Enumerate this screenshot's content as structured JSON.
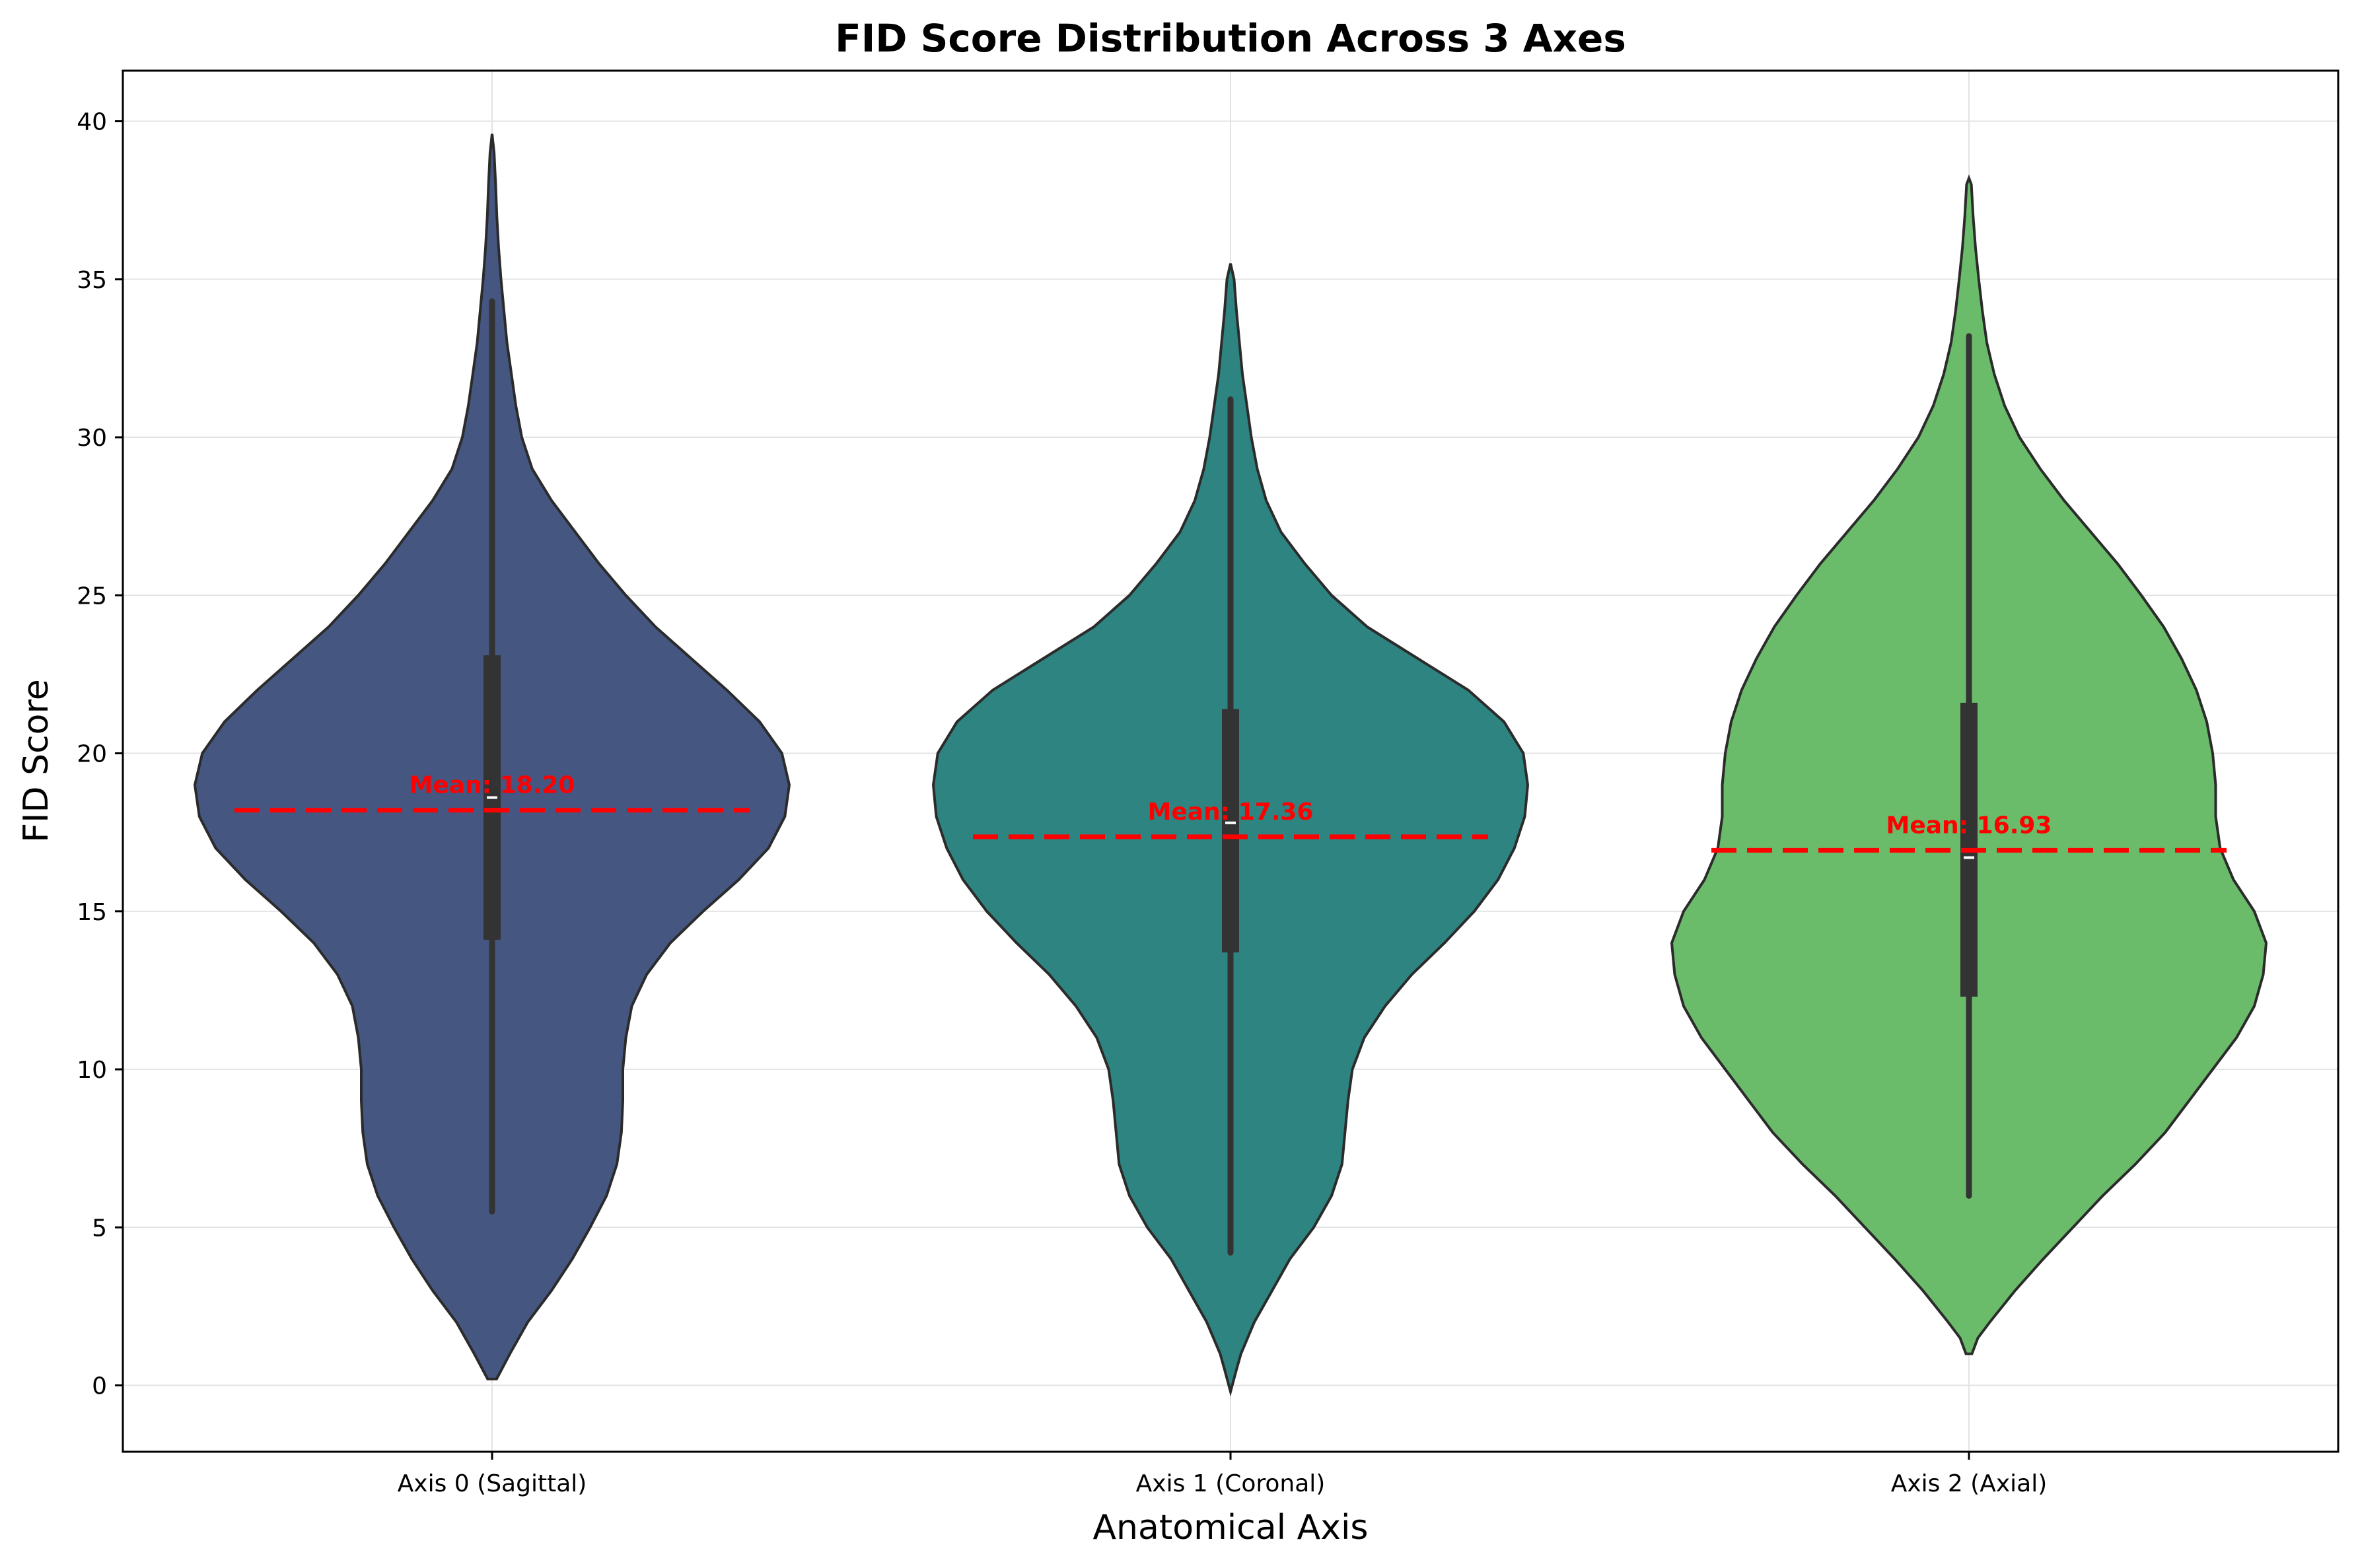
{
  "chart_data": {
    "type": "violin",
    "title": "FID Score Distribution Across 3 Axes",
    "xlabel": "Anatomical Axis",
    "ylabel": "FID Score",
    "ylim": [
      -2.1,
      41.6
    ],
    "yticks": [
      0,
      5,
      10,
      15,
      20,
      25,
      30,
      35,
      40
    ],
    "grid": true,
    "colors": [
      "#455681",
      "#2e8480",
      "#6abc6a"
    ],
    "categories": [
      "Axis 0 (Sagittal)",
      "Axis 1 (Coronal)",
      "Axis 2 (Axial)"
    ],
    "series": [
      {
        "category": "Axis 0 (Sagittal)",
        "mean": 18.2,
        "mean_label": "Mean: 18.20",
        "median": 18.6,
        "q1": 14.1,
        "q3": 23.1,
        "whisker_low": 5.5,
        "whisker_high": 34.3,
        "density": [
          [
            0.2,
            0.015
          ],
          [
            1,
            0.06
          ],
          [
            2,
            0.12
          ],
          [
            3,
            0.2
          ],
          [
            4,
            0.27
          ],
          [
            5,
            0.33
          ],
          [
            6,
            0.385
          ],
          [
            7,
            0.42
          ],
          [
            8,
            0.435
          ],
          [
            9,
            0.44
          ],
          [
            10,
            0.44
          ],
          [
            11,
            0.45
          ],
          [
            12,
            0.47
          ],
          [
            13,
            0.52
          ],
          [
            14,
            0.6
          ],
          [
            15,
            0.71
          ],
          [
            16,
            0.83
          ],
          [
            17,
            0.93
          ],
          [
            18,
            0.985
          ],
          [
            19,
            1.0
          ],
          [
            20,
            0.975
          ],
          [
            21,
            0.9
          ],
          [
            22,
            0.79
          ],
          [
            23,
            0.67
          ],
          [
            24,
            0.55
          ],
          [
            25,
            0.45
          ],
          [
            26,
            0.36
          ],
          [
            27,
            0.28
          ],
          [
            28,
            0.2
          ],
          [
            29,
            0.135
          ],
          [
            30,
            0.1
          ],
          [
            31,
            0.08
          ],
          [
            32,
            0.065
          ],
          [
            33,
            0.05
          ],
          [
            34,
            0.04
          ],
          [
            35,
            0.03
          ],
          [
            36,
            0.022
          ],
          [
            37,
            0.016
          ],
          [
            38,
            0.012
          ],
          [
            39,
            0.007
          ],
          [
            39.6,
            0.0
          ]
        ]
      },
      {
        "category": "Axis 1 (Coronal)",
        "mean": 17.36,
        "mean_label": "Mean: 17.36",
        "median": 17.8,
        "q1": 13.7,
        "q3": 21.4,
        "whisker_low": 4.2,
        "whisker_high": 31.2,
        "density": [
          [
            -0.2,
            0.0
          ],
          [
            0.5,
            0.02
          ],
          [
            1,
            0.035
          ],
          [
            2,
            0.08
          ],
          [
            3,
            0.14
          ],
          [
            4,
            0.2
          ],
          [
            5,
            0.28
          ],
          [
            6,
            0.34
          ],
          [
            7,
            0.375
          ],
          [
            8,
            0.385
          ],
          [
            9,
            0.395
          ],
          [
            10,
            0.41
          ],
          [
            11,
            0.45
          ],
          [
            12,
            0.52
          ],
          [
            13,
            0.61
          ],
          [
            14,
            0.72
          ],
          [
            15,
            0.82
          ],
          [
            16,
            0.9
          ],
          [
            17,
            0.955
          ],
          [
            18,
            0.99
          ],
          [
            19,
            1.0
          ],
          [
            20,
            0.985
          ],
          [
            21,
            0.92
          ],
          [
            22,
            0.8
          ],
          [
            23,
            0.63
          ],
          [
            24,
            0.46
          ],
          [
            25,
            0.34
          ],
          [
            26,
            0.25
          ],
          [
            27,
            0.17
          ],
          [
            28,
            0.12
          ],
          [
            29,
            0.09
          ],
          [
            30,
            0.07
          ],
          [
            31,
            0.055
          ],
          [
            32,
            0.04
          ],
          [
            33,
            0.03
          ],
          [
            34,
            0.02
          ],
          [
            35,
            0.012
          ],
          [
            35.5,
            0.0
          ]
        ]
      },
      {
        "category": "Axis 2 (Axial)",
        "mean": 16.93,
        "mean_label": "Mean: 16.93",
        "median": 16.7,
        "q1": 12.3,
        "q3": 21.6,
        "whisker_low": 6.0,
        "whisker_high": 33.2,
        "density": [
          [
            1,
            0.01
          ],
          [
            1.5,
            0.03
          ],
          [
            2,
            0.07
          ],
          [
            3,
            0.155
          ],
          [
            4,
            0.25
          ],
          [
            5,
            0.35
          ],
          [
            6,
            0.45
          ],
          [
            7,
            0.56
          ],
          [
            8,
            0.66
          ],
          [
            9,
            0.74
          ],
          [
            10,
            0.82
          ],
          [
            11,
            0.9
          ],
          [
            12,
            0.96
          ],
          [
            13,
            0.99
          ],
          [
            14,
            1.0
          ],
          [
            15,
            0.96
          ],
          [
            16,
            0.89
          ],
          [
            17,
            0.845
          ],
          [
            18,
            0.83
          ],
          [
            19,
            0.83
          ],
          [
            20,
            0.82
          ],
          [
            21,
            0.8
          ],
          [
            22,
            0.765
          ],
          [
            23,
            0.715
          ],
          [
            24,
            0.655
          ],
          [
            25,
            0.58
          ],
          [
            26,
            0.5
          ],
          [
            27,
            0.41
          ],
          [
            28,
            0.32
          ],
          [
            29,
            0.24
          ],
          [
            30,
            0.17
          ],
          [
            31,
            0.12
          ],
          [
            32,
            0.085
          ],
          [
            33,
            0.06
          ],
          [
            34,
            0.045
          ],
          [
            35,
            0.033
          ],
          [
            36,
            0.022
          ],
          [
            37,
            0.014
          ],
          [
            38,
            0.008
          ],
          [
            38.2,
            0.0
          ]
        ]
      }
    ]
  }
}
